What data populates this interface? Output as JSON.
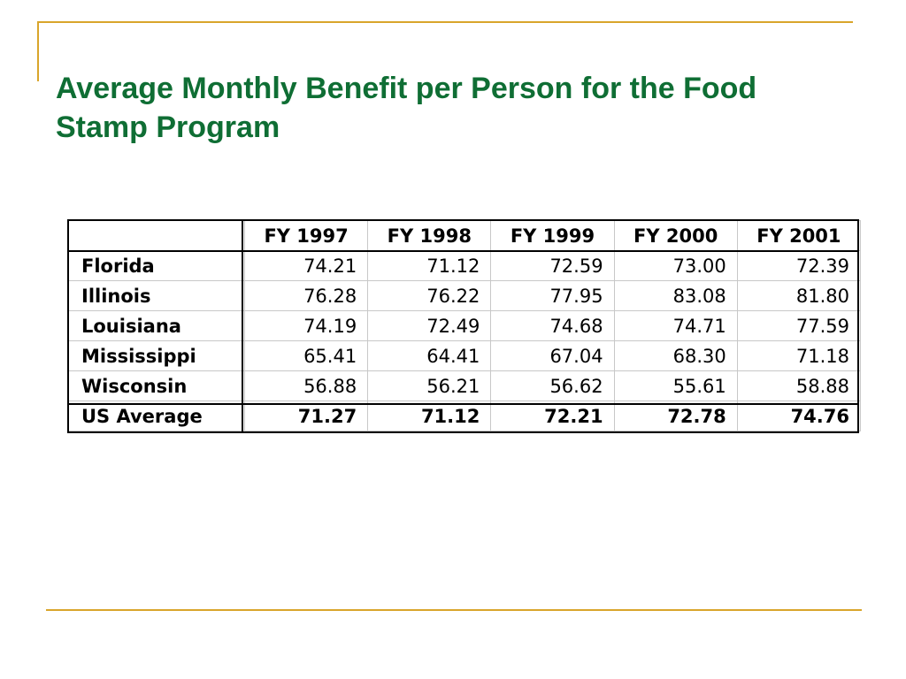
{
  "slide": {
    "title": "Average Monthly Benefit per Person for the Food Stamp Program"
  },
  "table": {
    "corner": "",
    "columns": [
      "FY 1997",
      "FY 1998",
      "FY 1999",
      "FY 2000",
      "FY 2001"
    ],
    "rows": [
      {
        "label": "Florida",
        "values": [
          "74.21",
          "71.12",
          "72.59",
          "73.00",
          "72.39"
        ]
      },
      {
        "label": "Illinois",
        "values": [
          "76.28",
          "76.22",
          "77.95",
          "83.08",
          "81.80"
        ]
      },
      {
        "label": "Louisiana",
        "values": [
          "74.19",
          "72.49",
          "74.68",
          "74.71",
          "77.59"
        ]
      },
      {
        "label": "Mississippi",
        "values": [
          "65.41",
          "64.41",
          "67.04",
          "68.30",
          "71.18"
        ]
      },
      {
        "label": "Wisconsin",
        "values": [
          "56.88",
          "56.21",
          "56.62",
          "55.61",
          "58.88"
        ]
      },
      {
        "label": "US Average",
        "values": [
          "71.27",
          "71.12",
          "72.21",
          "72.78",
          "74.76"
        ]
      }
    ]
  },
  "colors": {
    "title": "#0f6e34",
    "frame_accent": "#d9a52b",
    "grid": "#c8c8c8",
    "outline": "#000000"
  }
}
